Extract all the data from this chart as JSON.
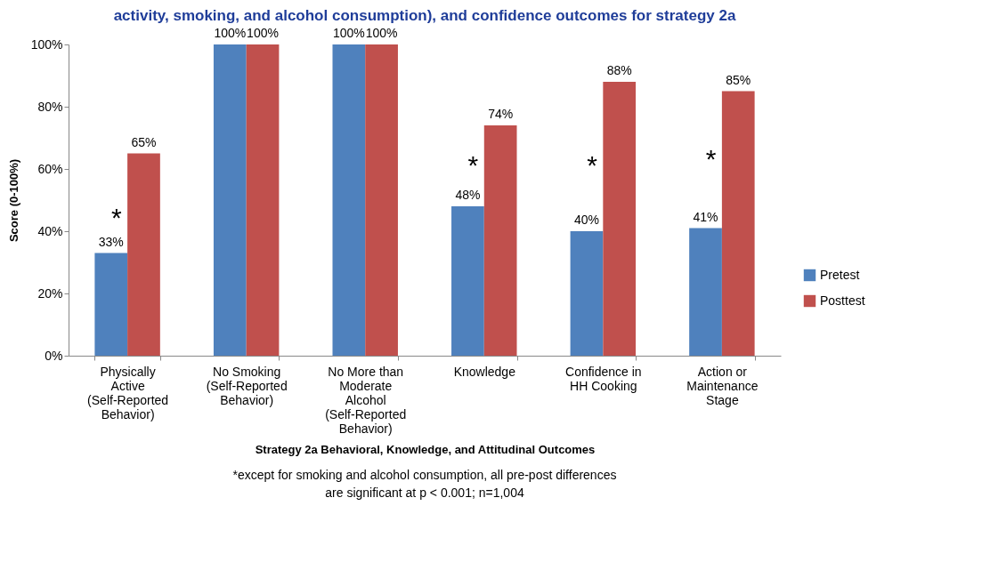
{
  "chart_data": {
    "type": "bar",
    "title": "activity, smoking, and alcohol consumption), and confidence outcomes for strategy 2a",
    "xlabel": "Strategy 2a Behavioral, Knowledge, and Attitudinal Outcomes",
    "ylabel": "Score   (0-100%)",
    "categories": [
      "Physically Active (Self-Reported Behavior)",
      "No Smoking (Self-Reported Behavior)",
      "No More than Moderate Alcohol (Self-Reported Behavior)",
      "Knowledge",
      "Confidence in HH Cooking",
      "Action or Maintenance Stage"
    ],
    "series": [
      {
        "name": "Pretest",
        "color": "#4f81bd",
        "values": [
          33,
          100,
          100,
          48,
          40,
          41
        ],
        "value_labels": [
          "33%",
          "100%",
          "100%",
          "48%",
          "40%",
          "41%"
        ]
      },
      {
        "name": "Posttest",
        "color": "#c0504d",
        "values": [
          65,
          100,
          100,
          74,
          88,
          85
        ],
        "value_labels": [
          "65%",
          "100%",
          "100%",
          "74%",
          "88%",
          "85%"
        ]
      }
    ],
    "ylim": [
      0,
      100
    ],
    "yticks": [
      {
        "value": 0,
        "label": "0%"
      },
      {
        "value": 20,
        "label": "20%"
      },
      {
        "value": 40,
        "label": "40%"
      },
      {
        "value": 60,
        "label": "60%"
      },
      {
        "value": 80,
        "label": "80%"
      },
      {
        "value": 100,
        "label": "100%"
      }
    ],
    "legend": "right",
    "annotations": [
      {
        "text": "*",
        "x": "Physically Active (Self-Reported Behavior)",
        "y": 44
      },
      {
        "text": "*",
        "x": "Knowledge",
        "y": 61
      },
      {
        "text": "*",
        "x": "Confidence in HH Cooking",
        "y": 61
      },
      {
        "text": "*",
        "x": "Action or Maintenance Stage",
        "y": 63
      },
      "*except  for smoking and alcohol consumption, all pre-post differences are significant at p < 0.001; n=1,004"
    ]
  }
}
